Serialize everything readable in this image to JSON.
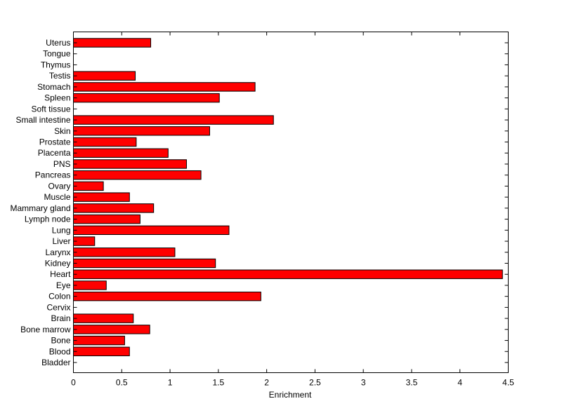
{
  "chart_data": {
    "type": "bar",
    "orientation": "horizontal",
    "title": "",
    "xlabel": "Enrichment",
    "ylabel": "",
    "xlim": [
      0,
      4.5
    ],
    "xticks": [
      0,
      0.5,
      1,
      1.5,
      2,
      2.5,
      3,
      3.5,
      4,
      4.5
    ],
    "xtick_labels": [
      "0",
      "0.5",
      "1",
      "1.5",
      "2",
      "2.5",
      "3",
      "3.5",
      "4",
      "4.5"
    ],
    "grid": false,
    "bar_color": "#ff0000",
    "categories": [
      "Uterus",
      "Tongue",
      "Thymus",
      "Testis",
      "Stomach",
      "Spleen",
      "Soft tissue",
      "Small intestine",
      "Skin",
      "Prostate",
      "Placenta",
      "PNS",
      "Pancreas",
      "Ovary",
      "Muscle",
      "Mammary gland",
      "Lymph node",
      "Lung",
      "Liver",
      "Larynx",
      "Kidney",
      "Heart",
      "Eye",
      "Colon",
      "Cervix",
      "Brain",
      "Bone marrow",
      "Bone",
      "Blood",
      "Bladder"
    ],
    "values": [
      0.8,
      0,
      0,
      0.64,
      1.88,
      1.51,
      0,
      2.07,
      1.41,
      0.65,
      0.98,
      1.17,
      1.32,
      0.31,
      0.58,
      0.83,
      0.69,
      1.61,
      0.22,
      1.05,
      1.47,
      4.44,
      0.34,
      1.94,
      0,
      0.62,
      0.79,
      0.53,
      0.58,
      0
    ]
  }
}
